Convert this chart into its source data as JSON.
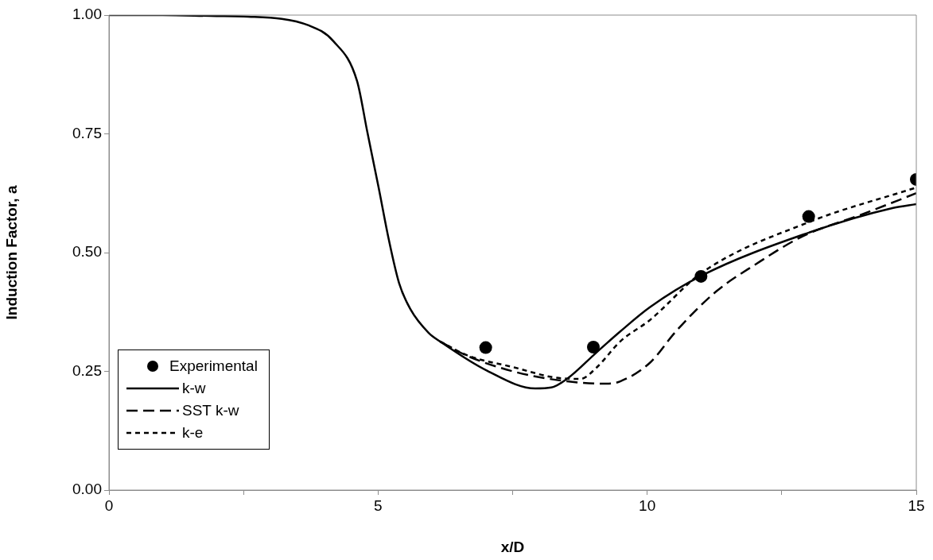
{
  "chart_data": {
    "type": "line",
    "xlabel": "x/D",
    "ylabel": "Induction Factor, a",
    "xlim": [
      0,
      15
    ],
    "ylim": [
      0,
      1
    ],
    "xticks": [
      0,
      {
        "value": 2.5,
        "label": null
      },
      5,
      {
        "value": 7.5,
        "label": null
      },
      10,
      {
        "value": 12.5,
        "label": null
      },
      15
    ],
    "yticks": [
      {
        "value": 0,
        "label": "0.00"
      },
      {
        "value": 0.25,
        "label": "0.25"
      },
      {
        "value": 0.5,
        "label": "0.50"
      },
      {
        "value": 0.75,
        "label": "0.75"
      },
      {
        "value": 1,
        "label": "1.00"
      }
    ],
    "legend": "bottom left",
    "series": [
      {
        "name": "Experimental",
        "type": "scatter",
        "marker": "circle",
        "color": "#000000",
        "x": [
          7,
          9,
          11,
          13,
          15
        ],
        "values": [
          0.3,
          0.301,
          0.45,
          0.576,
          0.654
        ]
      },
      {
        "name": "k-w",
        "line_style": "solid",
        "marker": "none",
        "color": "#000000",
        "x": [
          0,
          1,
          2,
          2.5,
          3.72,
          4.17,
          4.61,
          4.8,
          5.01,
          5.2,
          5.39,
          5.6,
          5.94,
          6.15,
          7.03,
          7.92,
          8.22,
          8.51,
          9.06,
          9.5,
          10.05,
          11.02,
          12.9,
          14.57,
          15
        ],
        "values": [
          1,
          1,
          0.998,
          0.997,
          0.978,
          0.945,
          0.861,
          0.754,
          0.637,
          0.527,
          0.436,
          0.381,
          0.331,
          0.313,
          0.251,
          0.214,
          0.216,
          0.234,
          0.29,
          0.334,
          0.385,
          0.452,
          0.538,
          0.594,
          0.602
        ]
      },
      {
        "name": "SST k-w",
        "line_style": "dashed",
        "marker": "none",
        "color": "#000000",
        "x": [
          6.15,
          6.65,
          7.54,
          8.51,
          9.25,
          9.5,
          10.05,
          10.54,
          11.28,
          12.01,
          12.9,
          13.98,
          15
        ],
        "values": [
          0.313,
          0.283,
          0.249,
          0.229,
          0.224,
          0.229,
          0.268,
          0.335,
          0.418,
          0.475,
          0.535,
          0.58,
          0.625
        ]
      },
      {
        "name": "k-e",
        "line_style": "dotted",
        "marker": "none",
        "color": "#000000",
        "x": [
          6.15,
          6.65,
          7.54,
          8.28,
          8.76,
          9.06,
          9.5,
          10.05,
          11.02,
          13,
          15
        ],
        "values": [
          0.313,
          0.284,
          0.258,
          0.237,
          0.234,
          0.258,
          0.313,
          0.358,
          0.458,
          0.564,
          0.637
        ]
      }
    ]
  }
}
